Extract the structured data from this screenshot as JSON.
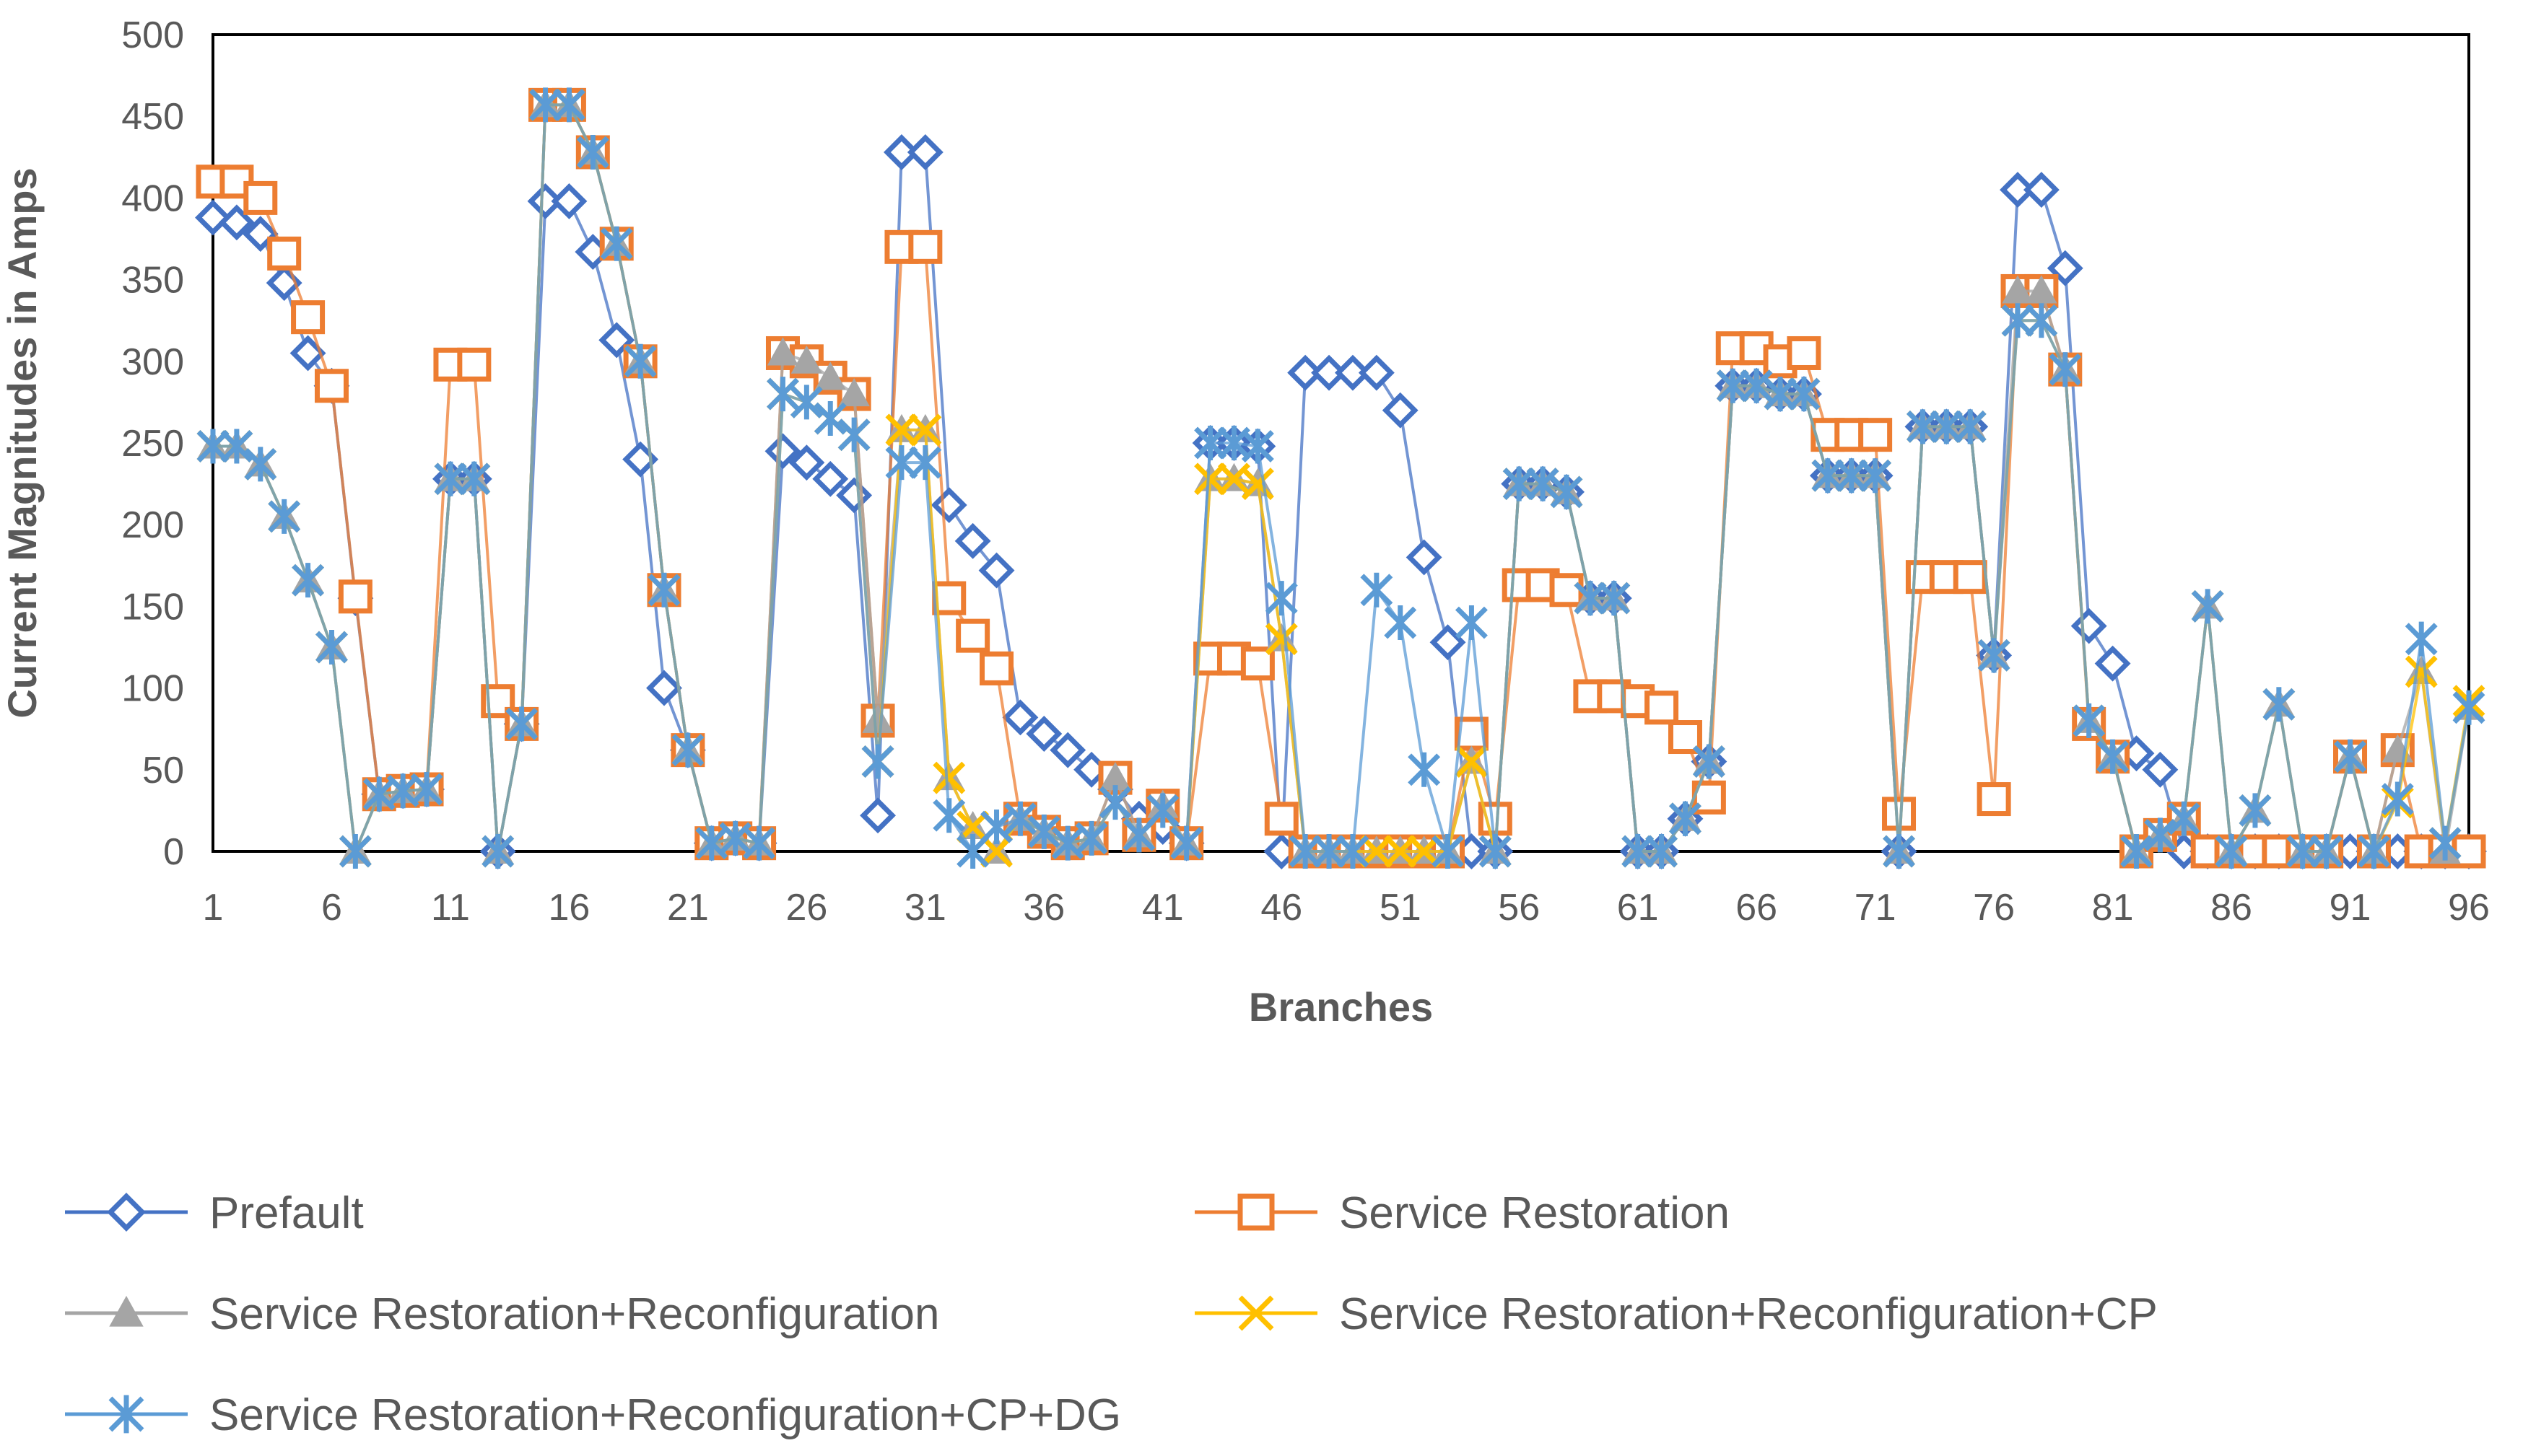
{
  "chart_data": {
    "type": "line",
    "title": "",
    "xlabel": "Branches",
    "ylabel": "Current Magnitudes in Amps",
    "ylim": [
      0,
      500
    ],
    "yticks": [
      0,
      50,
      100,
      150,
      200,
      250,
      300,
      350,
      400,
      450,
      500
    ],
    "xticks": [
      1,
      6,
      11,
      16,
      21,
      26,
      31,
      36,
      41,
      46,
      51,
      56,
      61,
      66,
      71,
      76,
      81,
      86,
      91,
      96
    ],
    "x": [
      1,
      2,
      3,
      4,
      5,
      6,
      7,
      8,
      9,
      10,
      11,
      12,
      13,
      14,
      15,
      16,
      17,
      18,
      19,
      20,
      21,
      22,
      23,
      24,
      25,
      26,
      27,
      28,
      29,
      30,
      31,
      32,
      33,
      34,
      35,
      36,
      37,
      38,
      39,
      40,
      41,
      42,
      43,
      44,
      45,
      46,
      47,
      48,
      49,
      50,
      51,
      52,
      53,
      54,
      55,
      56,
      57,
      58,
      59,
      60,
      61,
      62,
      63,
      64,
      65,
      66,
      67,
      68,
      69,
      70,
      71,
      72,
      73,
      74,
      75,
      76,
      77,
      78,
      79,
      80,
      81,
      82,
      83,
      84,
      85,
      86,
      87,
      88,
      89,
      90,
      91,
      92,
      93,
      94,
      95,
      96
    ],
    "legend_position": "bottom",
    "series": [
      {
        "name": "Prefault",
        "color": "#4472C4",
        "marker": "diamond",
        "values": [
          388,
          385,
          378,
          348,
          305,
          285,
          155,
          35,
          37,
          38,
          228,
          228,
          0,
          78,
          398,
          398,
          367,
          313,
          240,
          100,
          62,
          5,
          8,
          5,
          245,
          238,
          228,
          218,
          22,
          428,
          428,
          212,
          190,
          172,
          82,
          72,
          62,
          50,
          38,
          20,
          15,
          5,
          250,
          250,
          248,
          0,
          293,
          293,
          293,
          293,
          270,
          180,
          128,
          0,
          0,
          225,
          225,
          220,
          155,
          155,
          0,
          0,
          20,
          55,
          285,
          285,
          280,
          280,
          230,
          230,
          230,
          0,
          260,
          260,
          260,
          120,
          405,
          405,
          357,
          138,
          115,
          60,
          50,
          0,
          0,
          0,
          0,
          0,
          0,
          0,
          0,
          0,
          0,
          0,
          0,
          0
        ]
      },
      {
        "name": "Service Restoration",
        "color": "#ED7D31",
        "marker": "square",
        "values": [
          410,
          410,
          400,
          366,
          327,
          285,
          156,
          35,
          37,
          38,
          298,
          298,
          92,
          78,
          457,
          457,
          428,
          372,
          300,
          160,
          62,
          5,
          8,
          5,
          305,
          300,
          290,
          280,
          80,
          370,
          370,
          155,
          132,
          112,
          20,
          12,
          5,
          8,
          45,
          10,
          28,
          5,
          118,
          118,
          115,
          20,
          0,
          0,
          0,
          0,
          0,
          0,
          0,
          72,
          20,
          163,
          163,
          160,
          95,
          95,
          92,
          88,
          70,
          33,
          308,
          308,
          300,
          305,
          255,
          255,
          255,
          23,
          168,
          168,
          168,
          32,
          343,
          343,
          295,
          78,
          58,
          0,
          10,
          20,
          0,
          0,
          0,
          0,
          0,
          0,
          58,
          0,
          62,
          0,
          0,
          0
        ]
      },
      {
        "name": "Service Restoration+Reconfiguration",
        "color": "#A5A5A5",
        "marker": "triangle",
        "values": [
          248,
          248,
          237,
          205,
          166,
          125,
          0,
          35,
          37,
          38,
          228,
          228,
          0,
          78,
          457,
          457,
          428,
          372,
          300,
          160,
          62,
          5,
          8,
          5,
          305,
          300,
          290,
          280,
          80,
          258,
          258,
          45,
          15,
          0,
          20,
          12,
          5,
          8,
          45,
          10,
          28,
          5,
          228,
          228,
          225,
          130,
          0,
          0,
          0,
          0,
          0,
          0,
          0,
          55,
          0,
          225,
          225,
          220,
          155,
          155,
          0,
          0,
          20,
          55,
          285,
          285,
          280,
          280,
          230,
          230,
          230,
          0,
          260,
          260,
          260,
          120,
          343,
          343,
          295,
          80,
          58,
          0,
          10,
          20,
          150,
          0,
          25,
          90,
          0,
          0,
          58,
          0,
          62,
          110,
          0,
          88
        ]
      },
      {
        "name": "Service Restoration+Reconfiguration+CP",
        "color": "#FFC000",
        "marker": "x",
        "values": [
          248,
          248,
          237,
          205,
          166,
          125,
          0,
          35,
          37,
          38,
          228,
          228,
          0,
          78,
          457,
          457,
          428,
          372,
          300,
          160,
          62,
          5,
          8,
          5,
          280,
          275,
          265,
          255,
          55,
          258,
          258,
          45,
          15,
          0,
          20,
          12,
          5,
          8,
          30,
          10,
          25,
          5,
          228,
          228,
          225,
          130,
          0,
          0,
          0,
          0,
          0,
          0,
          0,
          55,
          0,
          225,
          225,
          220,
          155,
          155,
          0,
          0,
          20,
          55,
          285,
          285,
          280,
          280,
          230,
          230,
          230,
          0,
          260,
          260,
          260,
          120,
          325,
          325,
          295,
          80,
          58,
          0,
          10,
          20,
          150,
          0,
          25,
          90,
          0,
          0,
          58,
          0,
          30,
          110,
          5,
          92
        ]
      },
      {
        "name": "Service Restoration+Reconfiguration+CP+DG",
        "color": "#5B9BD5",
        "marker": "star",
        "values": [
          248,
          248,
          237,
          205,
          166,
          125,
          0,
          35,
          37,
          38,
          228,
          228,
          0,
          78,
          457,
          457,
          428,
          372,
          300,
          160,
          62,
          5,
          8,
          5,
          280,
          275,
          265,
          255,
          55,
          238,
          238,
          22,
          0,
          15,
          20,
          12,
          5,
          8,
          30,
          10,
          25,
          5,
          250,
          250,
          248,
          155,
          0,
          0,
          0,
          160,
          140,
          50,
          0,
          140,
          0,
          225,
          225,
          220,
          155,
          155,
          0,
          0,
          20,
          55,
          285,
          285,
          280,
          280,
          230,
          230,
          230,
          0,
          260,
          260,
          260,
          120,
          325,
          325,
          295,
          80,
          58,
          0,
          10,
          20,
          150,
          0,
          25,
          90,
          0,
          0,
          58,
          0,
          32,
          130,
          5,
          88
        ]
      }
    ]
  }
}
